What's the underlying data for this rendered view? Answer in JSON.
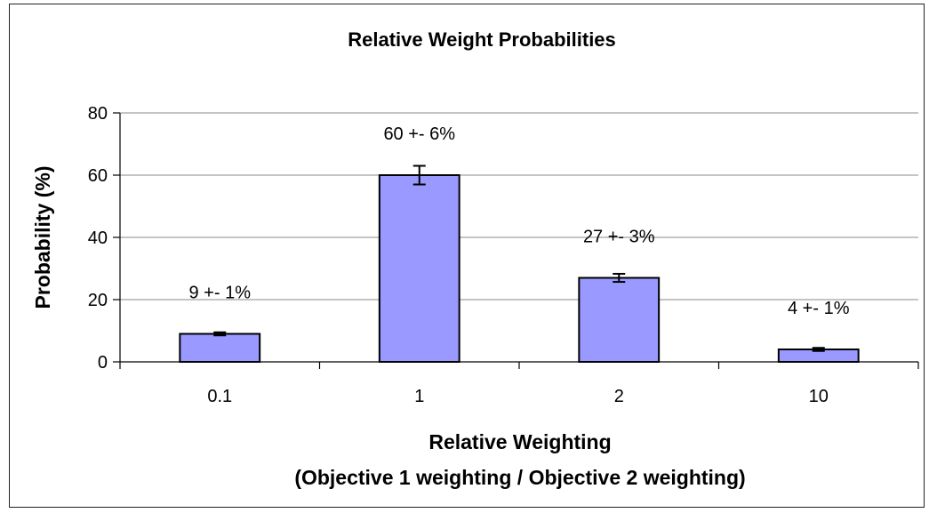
{
  "chart_data": {
    "type": "bar",
    "title": "Relative Weight Probabilities",
    "xlabel": "Relative Weighting",
    "xlabel_line2": "(Objective 1 weighting / Objective 2 weighting)",
    "ylabel": "Probability (%)",
    "categories": [
      "0.1",
      "1",
      "2",
      "10"
    ],
    "values": [
      9,
      60,
      27,
      4
    ],
    "errors": [
      0.5,
      3,
      1.3,
      0.5
    ],
    "data_labels": [
      "9 +- 1%",
      "60 +- 6%",
      "27 +- 3%",
      "4 +- 1%"
    ],
    "ylim": [
      0,
      80
    ],
    "yticks": [
      0,
      20,
      40,
      60,
      80
    ],
    "grid": true,
    "colors": {
      "bar_fill": "#9999ff",
      "bar_stroke": "#000000",
      "grid": "#888888"
    }
  }
}
